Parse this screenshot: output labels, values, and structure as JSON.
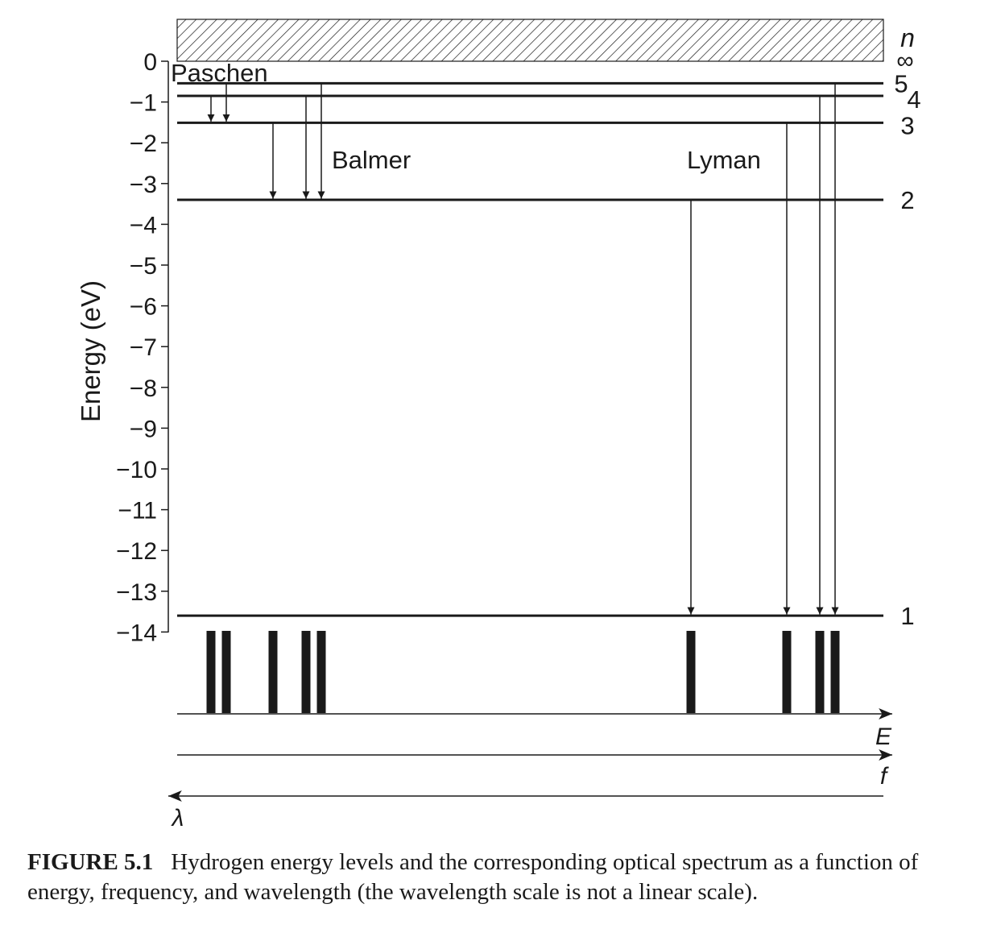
{
  "figure": {
    "axis_label": "Energy (eV)",
    "n_label": "n",
    "infinity_label": "∞",
    "series_labels": {
      "paschen": "Paschen",
      "balmer": "Balmer",
      "lyman": "Lyman"
    },
    "energy_axis_label": "E",
    "frequency_axis_label": "f",
    "wavelength_axis_label": "λ",
    "colors": {
      "ink": "#1a1a1a",
      "background": "#ffffff"
    }
  },
  "caption": {
    "label": "FIGURE 5.1",
    "text": "Hydrogen energy levels and the corresponding optical spectrum as a function of energy, frequency, and wavelength (the wavelength scale is not a linear scale)."
  },
  "chart_data": {
    "type": "energy-level-diagram",
    "ylabel": "Energy (eV)",
    "ylim": [
      -14,
      0
    ],
    "yticks": [
      0,
      -1,
      -2,
      -3,
      -4,
      -5,
      -6,
      -7,
      -8,
      -9,
      -10,
      -11,
      -12,
      -13,
      -14
    ],
    "ytick_labels": [
      "0",
      "−1",
      "−2",
      "−3",
      "−4",
      "−5",
      "−6",
      "−7",
      "−8",
      "−9",
      "−10",
      "−11",
      "−12",
      "−13",
      "−14"
    ],
    "levels": [
      {
        "n": "1",
        "energy": -13.6
      },
      {
        "n": "2",
        "energy": -3.4
      },
      {
        "n": "3",
        "energy": -1.51
      },
      {
        "n": "4",
        "energy": -0.85
      },
      {
        "n": "5",
        "energy": -0.54
      },
      {
        "n": "∞",
        "energy": 0
      }
    ],
    "transitions": [
      {
        "series": "Paschen",
        "from": 5,
        "to": 3
      },
      {
        "series": "Paschen",
        "from": 4,
        "to": 3
      },
      {
        "series": "Balmer",
        "from": 3,
        "to": 2
      },
      {
        "series": "Balmer",
        "from": 4,
        "to": 2
      },
      {
        "series": "Balmer",
        "from": 5,
        "to": 2
      },
      {
        "series": "Lyman",
        "from": 2,
        "to": 1
      },
      {
        "series": "Lyman",
        "from": 3,
        "to": 1
      },
      {
        "series": "Lyman",
        "from": 4,
        "to": 1
      },
      {
        "series": "Lyman",
        "from": 5,
        "to": 1
      }
    ],
    "spectrum_axes": [
      "E",
      "f",
      "λ"
    ]
  }
}
